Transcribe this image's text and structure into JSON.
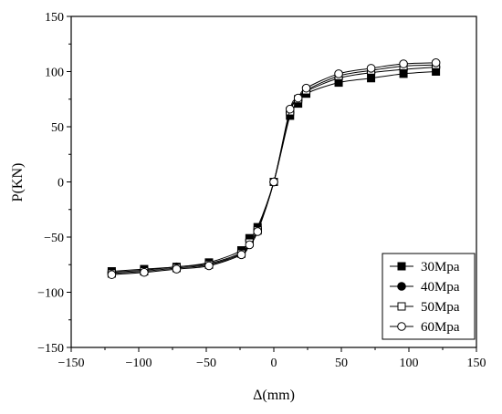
{
  "chart_data": {
    "type": "line",
    "xlabel": "Δ(mm)",
    "ylabel": "P(KN)",
    "xlim": [
      -150,
      150
    ],
    "ylim": [
      -150,
      150
    ],
    "xticks": [
      -150,
      -100,
      -50,
      0,
      50,
      100,
      150
    ],
    "yticks": [
      -150,
      -100,
      -50,
      0,
      50,
      100,
      150
    ],
    "x": [
      -120,
      -96,
      -72,
      -48,
      -24,
      -18,
      -12,
      0,
      12,
      18,
      24,
      48,
      72,
      96,
      120
    ],
    "legend_position": "bottom-right",
    "grid": false,
    "series": [
      {
        "name": "30Mpa",
        "marker": "filled-square",
        "values": [
          -81,
          -79,
          -77,
          -73,
          -62,
          -51,
          -41,
          0,
          60,
          71,
          80,
          90,
          94,
          98,
          100
        ]
      },
      {
        "name": "40Mpa",
        "marker": "filled-circle",
        "values": [
          -82,
          -80,
          -77,
          -74,
          -64,
          -53,
          -43,
          0,
          63,
          74,
          82,
          94,
          99,
          102,
          104
        ]
      },
      {
        "name": "50Mpa",
        "marker": "open-square",
        "values": [
          -83,
          -81,
          -78,
          -75,
          -65,
          -55,
          -44,
          0,
          64,
          75,
          83,
          96,
          101,
          105,
          106
        ]
      },
      {
        "name": "60Mpa",
        "marker": "open-circle",
        "values": [
          -84,
          -82,
          -79,
          -76,
          -66,
          -57,
          -45,
          0,
          66,
          76,
          85,
          98,
          103,
          107,
          108
        ]
      }
    ]
  }
}
